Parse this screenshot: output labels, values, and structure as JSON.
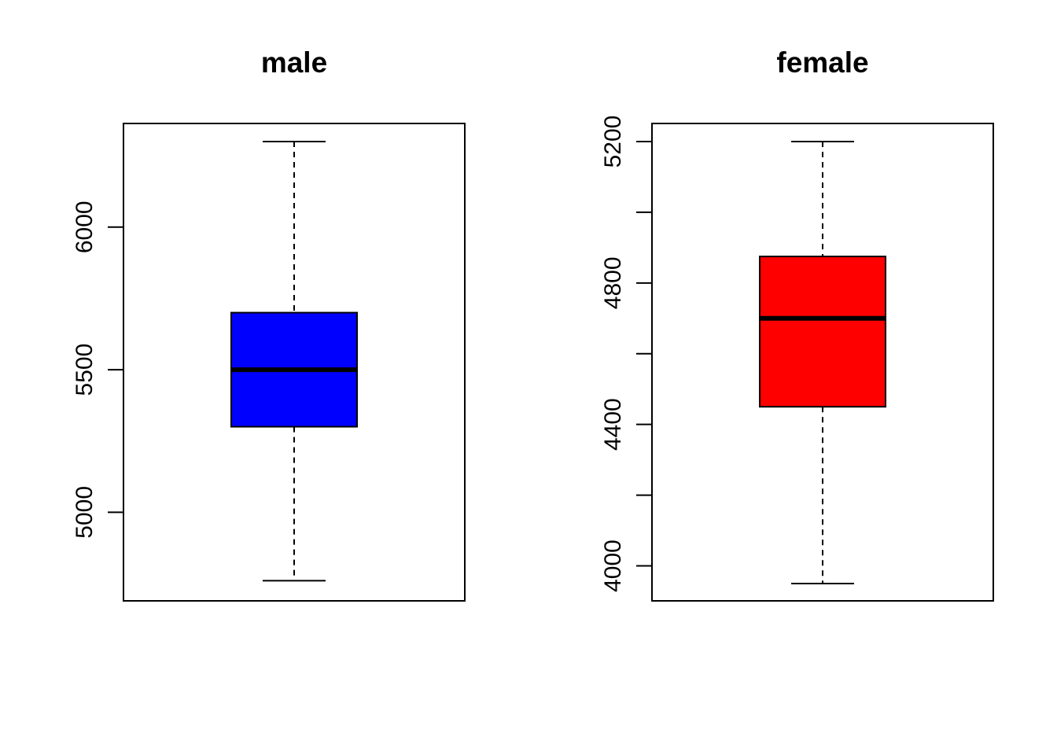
{
  "chart_data": [
    {
      "type": "boxplot",
      "title": "male",
      "fill": "#0000ff",
      "ylim": [
        4750,
        6300
      ],
      "yticks": [
        5000,
        5500,
        6000
      ],
      "stats": {
        "min": 4760,
        "q1": 5300,
        "median": 5500,
        "q3": 5700,
        "max": 6300
      }
    },
    {
      "type": "boxplot",
      "title": "female",
      "fill": "#ff0000",
      "ylim": [
        3950,
        5200
      ],
      "yticks": [
        4000,
        4200,
        4400,
        4600,
        4800,
        5000,
        5200
      ],
      "yticklabels": [
        "4000",
        "",
        "4400",
        "",
        "4800",
        "",
        "5200"
      ],
      "stats": {
        "min": 3950,
        "q1": 4450,
        "median": 4700,
        "q3": 4875,
        "max": 5200
      }
    }
  ]
}
